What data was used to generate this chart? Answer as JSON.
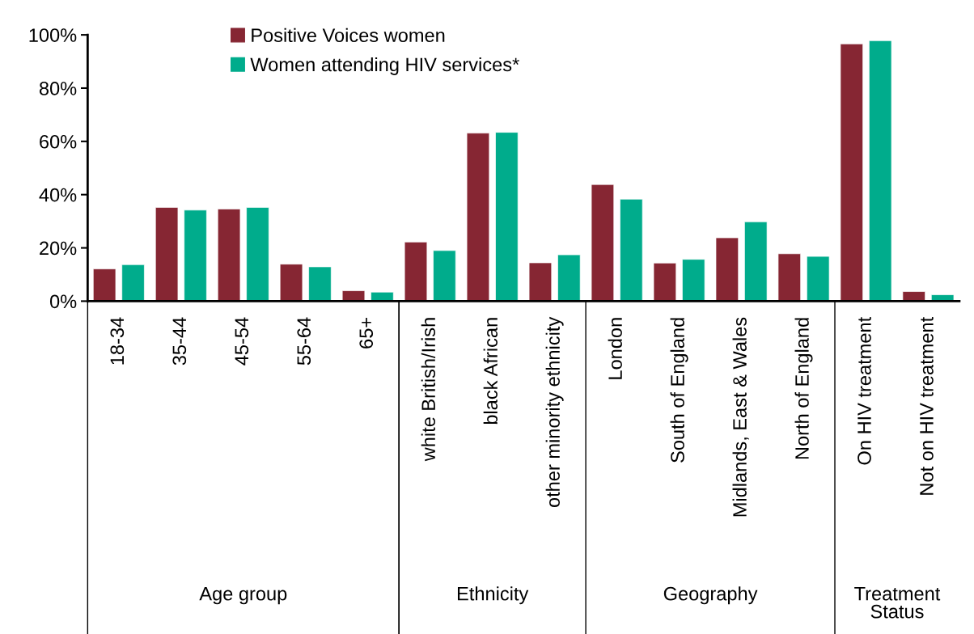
{
  "chart_data": {
    "type": "bar",
    "categories": [
      "18-34",
      "35-44",
      "45-54",
      "55-64",
      "65+",
      "white British/Irish",
      "black African",
      "other minority ethnicity",
      "London",
      "South of England",
      "Midlands, East & Wales",
      "North of England",
      "On HIV treatment",
      "Not on HIV treatment"
    ],
    "series": [
      {
        "name": "Positive Voices women",
        "color": "#862633",
        "values": [
          12.1,
          35.2,
          34.6,
          13.9,
          3.9,
          22.2,
          63.1,
          14.4,
          43.8,
          14.3,
          23.8,
          17.8,
          96.6,
          3.6
        ]
      },
      {
        "name": "Women attending HIV services*",
        "color": "#00ac8c",
        "values": [
          13.7,
          34.2,
          35.2,
          12.9,
          3.4,
          19.0,
          63.4,
          17.4,
          38.3,
          15.7,
          29.8,
          16.8,
          97.8,
          2.4
        ]
      }
    ],
    "ylim": [
      0,
      100
    ],
    "yticks": [
      {
        "value": 0,
        "label": "0%"
      },
      {
        "value": 20,
        "label": "20%"
      },
      {
        "value": 40,
        "label": "40%"
      },
      {
        "value": 60,
        "label": "60%"
      },
      {
        "value": 80,
        "label": "80%"
      },
      {
        "value": 100,
        "label": "100%"
      }
    ],
    "annotations": [
      "Age group",
      "Ethnicity",
      "Geography",
      "Treatment Status"
    ],
    "legend": "top",
    "grid": false
  }
}
